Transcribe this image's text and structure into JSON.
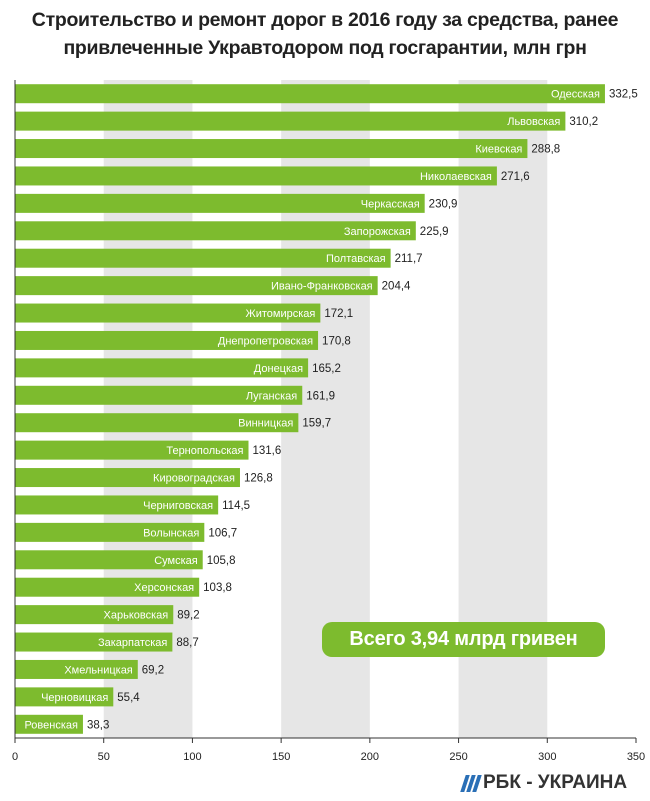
{
  "title": {
    "line1": "Строительство и ремонт дорог в 2016 году за средства, ранее",
    "line2": "привлеченные Укравтодором под госгарантии, млн грн"
  },
  "total_label": "Всего  3,94 млрд гривен",
  "brand": "РБК - УКРАИНА",
  "colors": {
    "bar": "#7dbb2e",
    "stripe": "#e6e6e6",
    "axis": "#333333"
  },
  "chart_data": {
    "type": "bar",
    "orientation": "horizontal",
    "title": "Строительство и ремонт дорог в 2016 году за средства, ранее привлеченные Укравтодором под госгарантии, млн грн",
    "categories": [
      "Одесская",
      "Львовская",
      "Киевская",
      "Николаевская",
      "Черкасская",
      "Запорожская",
      "Полтавская",
      "Ивано-Франковская",
      "Житомирская",
      "Днепропетровская",
      "Донецкая",
      "Луганская",
      "Винницкая",
      "Тернопольская",
      "Кировоградская",
      "Черниговская",
      "Волынская",
      "Сумская",
      "Херсонская",
      "Харьковская",
      "Закарпатская",
      "Хмельницкая",
      "Черновицкая",
      "Ровенская"
    ],
    "values": [
      332.5,
      310.2,
      288.8,
      271.6,
      230.9,
      225.9,
      211.7,
      204.4,
      172.1,
      170.8,
      165.2,
      161.9,
      159.7,
      131.6,
      126.8,
      114.5,
      106.7,
      105.8,
      103.8,
      89.2,
      88.7,
      69.2,
      55.4,
      38.3
    ],
    "value_labels": [
      "332,5",
      "310,2",
      "288,8",
      "271,6",
      "230,9",
      "225,9",
      "211,7",
      "204,4",
      "172,1",
      "170,8",
      "165,2",
      "161,9",
      "159,7",
      "131,6",
      "126,8",
      "114,5",
      "106,7",
      "105,8",
      "103,8",
      "89,2",
      "88,7",
      "69,2",
      "55,4",
      "38,3"
    ],
    "xlim": [
      0,
      350
    ],
    "xticks": [
      0,
      50,
      100,
      150,
      200,
      250,
      300,
      350
    ],
    "alternating_bands": true,
    "legend": "none"
  }
}
